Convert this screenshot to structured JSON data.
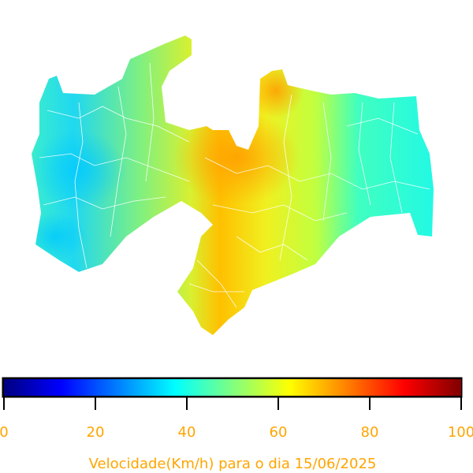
{
  "colorbar": {
    "label": "Velocidade(Km/h) para o dia 15/06/2025",
    "colormap": "jet",
    "range": [
      0,
      100
    ],
    "ticks": [
      0,
      20,
      40,
      60,
      80,
      100
    ],
    "text_color": "#ffa500"
  }
}
